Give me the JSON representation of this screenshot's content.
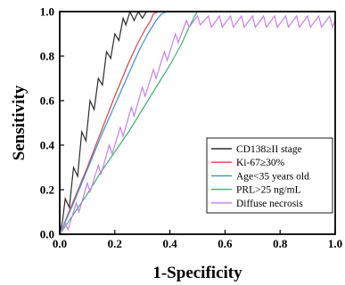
{
  "chart_data": {
    "type": "line",
    "xlabel": "1-Specificity",
    "ylabel": "Sensitivity",
    "xlim": [
      0,
      1.0
    ],
    "ylim": [
      0,
      1.0
    ],
    "xticks": [
      "0.0",
      "0.2",
      "0.4",
      "0.6",
      "0.8",
      "1.0"
    ],
    "yticks": [
      "0.0",
      "0.2",
      "0.4",
      "0.6",
      "0.8",
      "1.0"
    ],
    "grid": false,
    "legend_position": "bottom-right",
    "series": [
      {
        "name": "CD138≥II stage",
        "color": "#2b2b2b",
        "points": [
          [
            0,
            0
          ],
          [
            0.01,
            0.06
          ],
          [
            0.02,
            0.16
          ],
          [
            0.035,
            0.12
          ],
          [
            0.05,
            0.3
          ],
          [
            0.065,
            0.26
          ],
          [
            0.08,
            0.46
          ],
          [
            0.095,
            0.42
          ],
          [
            0.11,
            0.6
          ],
          [
            0.125,
            0.56
          ],
          [
            0.14,
            0.7
          ],
          [
            0.155,
            0.67
          ],
          [
            0.17,
            0.82
          ],
          [
            0.185,
            0.79
          ],
          [
            0.2,
            0.9
          ],
          [
            0.215,
            0.87
          ],
          [
            0.23,
            0.97
          ],
          [
            0.24,
            0.94
          ],
          [
            0.255,
            1.0
          ],
          [
            0.27,
            0.96
          ],
          [
            0.285,
            1.0
          ],
          [
            0.3,
            0.97
          ],
          [
            0.315,
            1.0
          ],
          [
            1.0,
            1.0
          ]
        ]
      },
      {
        "name": "Ki-67≥30%",
        "color": "#e0404a",
        "points": [
          [
            0,
            0
          ],
          [
            0.05,
            0.15
          ],
          [
            0.1,
            0.3
          ],
          [
            0.15,
            0.46
          ],
          [
            0.2,
            0.62
          ],
          [
            0.25,
            0.77
          ],
          [
            0.28,
            0.85
          ],
          [
            0.31,
            0.92
          ],
          [
            0.33,
            0.96
          ],
          [
            0.34,
            0.99
          ],
          [
            0.36,
            1.0
          ],
          [
            1.0,
            1.0
          ]
        ]
      },
      {
        "name": "Age<35 years old",
        "color": "#3b8fd8",
        "points": [
          [
            0,
            0
          ],
          [
            0.05,
            0.14
          ],
          [
            0.1,
            0.29
          ],
          [
            0.15,
            0.44
          ],
          [
            0.2,
            0.58
          ],
          [
            0.25,
            0.72
          ],
          [
            0.29,
            0.83
          ],
          [
            0.32,
            0.9
          ],
          [
            0.35,
            0.96
          ],
          [
            0.37,
            0.99
          ],
          [
            0.39,
            1.0
          ],
          [
            1.0,
            1.0
          ]
        ]
      },
      {
        "name": "PRL>25 ng/mL",
        "color": "#3cb371",
        "points": [
          [
            0,
            0
          ],
          [
            0.05,
            0.09
          ],
          [
            0.1,
            0.18
          ],
          [
            0.15,
            0.28
          ],
          [
            0.2,
            0.37
          ],
          [
            0.25,
            0.46
          ],
          [
            0.3,
            0.56
          ],
          [
            0.35,
            0.66
          ],
          [
            0.4,
            0.76
          ],
          [
            0.44,
            0.85
          ],
          [
            0.47,
            0.93
          ],
          [
            0.49,
            0.98
          ],
          [
            0.5,
            1.0
          ],
          [
            1.0,
            1.0
          ]
        ]
      },
      {
        "name": "Diffuse necrosis",
        "color": "#c77df0",
        "points": [
          [
            0,
            0
          ],
          [
            0.02,
            0.05
          ],
          [
            0.03,
            0.02
          ],
          [
            0.06,
            0.14
          ],
          [
            0.07,
            0.1
          ],
          [
            0.1,
            0.23
          ],
          [
            0.11,
            0.19
          ],
          [
            0.14,
            0.31
          ],
          [
            0.15,
            0.27
          ],
          [
            0.18,
            0.4
          ],
          [
            0.19,
            0.36
          ],
          [
            0.22,
            0.48
          ],
          [
            0.23,
            0.44
          ],
          [
            0.26,
            0.57
          ],
          [
            0.27,
            0.53
          ],
          [
            0.3,
            0.66
          ],
          [
            0.31,
            0.62
          ],
          [
            0.34,
            0.74
          ],
          [
            0.35,
            0.7
          ],
          [
            0.38,
            0.82
          ],
          [
            0.39,
            0.78
          ],
          [
            0.42,
            0.9
          ],
          [
            0.43,
            0.86
          ],
          [
            0.46,
            0.96
          ],
          [
            0.47,
            0.93
          ],
          [
            0.5,
            0.98
          ],
          [
            0.51,
            0.94
          ],
          [
            0.54,
            0.98
          ],
          [
            0.55,
            0.93
          ],
          [
            0.58,
            0.98
          ],
          [
            0.59,
            0.93
          ],
          [
            0.62,
            0.98
          ],
          [
            0.63,
            0.93
          ],
          [
            0.66,
            0.98
          ],
          [
            0.67,
            0.93
          ],
          [
            0.7,
            0.98
          ],
          [
            0.71,
            0.93
          ],
          [
            0.74,
            0.98
          ],
          [
            0.75,
            0.93
          ],
          [
            0.78,
            0.98
          ],
          [
            0.79,
            0.93
          ],
          [
            0.82,
            0.98
          ],
          [
            0.83,
            0.93
          ],
          [
            0.86,
            0.98
          ],
          [
            0.87,
            0.93
          ],
          [
            0.9,
            0.98
          ],
          [
            0.91,
            0.93
          ],
          [
            0.94,
            0.98
          ],
          [
            0.95,
            0.93
          ],
          [
            0.98,
            0.98
          ],
          [
            0.99,
            0.93
          ],
          [
            1.0,
            0.96
          ]
        ]
      }
    ]
  }
}
